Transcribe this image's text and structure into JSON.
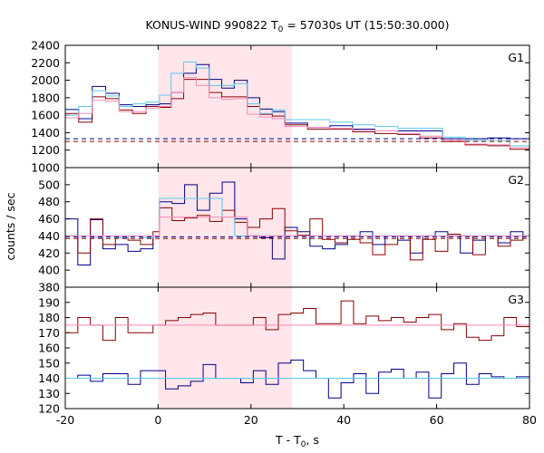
{
  "chart_data": {
    "type": "line",
    "title": "KONUS-WIND 990822 T",
    "title_sub": "0",
    "title_rest": " = 57030s UT (15:50:30.000)",
    "xlabel": "T - T",
    "xlabel_sub": "0",
    "xlabel_rest": ", s",
    "ylabel": "counts / sec",
    "xlim": [
      -20,
      80
    ],
    "xticks": [
      -20,
      0,
      20,
      40,
      60,
      80
    ],
    "shaded_interval": [
      0,
      28.8
    ],
    "shade_color": "#ffe6ea",
    "grid": false,
    "panels": [
      {
        "name": "G1",
        "ylim": [
          1000,
          2400
        ],
        "yticks": [
          1000,
          1200,
          1400,
          1600,
          1800,
          2000,
          2200,
          2400
        ],
        "bin_edges": [
          -20,
          -17.1,
          -14.2,
          -11.3,
          -8.4,
          -5.5,
          -2.6,
          0.3,
          2.8,
          5.5,
          8.2,
          11.0,
          13.7,
          16.4,
          19.2,
          21.9,
          24.6,
          27.3,
          32.2,
          37.0,
          41.9,
          46.7,
          51.6,
          56.4,
          61.3,
          66.1,
          71.0,
          75.8,
          80
        ],
        "series": [
          {
            "color": "#00008b",
            "style": "step",
            "values": [
              1665,
              1560,
              1930,
              1850,
              1720,
              1700,
              1720,
              1730,
              1860,
              2080,
              2180,
              2010,
              1910,
              2000,
              1800,
              1670,
              1640,
              1510,
              1460,
              1480,
              1440,
              1420,
              1420,
              1420,
              1330,
              1330,
              1340,
              1330
            ]
          },
          {
            "color": "#8b0000",
            "style": "step",
            "values": [
              1620,
              1520,
              1810,
              1790,
              1660,
              1620,
              1700,
              1690,
              1790,
              2010,
              2010,
              1860,
              1810,
              1810,
              1700,
              1610,
              1590,
              1490,
              1440,
              1440,
              1410,
              1390,
              1380,
              1340,
              1300,
              1260,
              1250,
              1210
            ]
          },
          {
            "color": "#5bc8ef",
            "style": "step",
            "values": [
              1600,
              1700,
              1880,
              1820,
              1700,
              1730,
              1750,
              1830,
              2080,
              2210,
              2140,
              1940,
              1940,
              1960,
              1730,
              1620,
              1660,
              1550,
              1550,
              1520,
              1490,
              1470,
              1450,
              1450,
              1350,
              1310,
              1310,
              1250
            ]
          },
          {
            "color": "#ff88b8",
            "style": "step",
            "values": [
              1570,
              1620,
              1770,
              1760,
              1640,
              1640,
              1680,
              1700,
              1860,
              2030,
              1940,
              1800,
              1780,
              1790,
              1610,
              1580,
              1560,
              1470,
              1460,
              1450,
              1430,
              1420,
              1390,
              1360,
              1310,
              1270,
              1260,
              1230
            ]
          },
          {
            "color": "#00008b",
            "style": "dashed",
            "values": [
              1330
            ]
          },
          {
            "color": "#8b0000",
            "style": "dashed",
            "values": [
              1300
            ]
          }
        ]
      },
      {
        "name": "G2",
        "ylim": [
          380,
          520
        ],
        "yticks": [
          380,
          400,
          420,
          440,
          460,
          480,
          500
        ],
        "bin_edges": [
          -20,
          -17.3,
          -14.6,
          -11.9,
          -9.2,
          -6.5,
          -3.8,
          -1.1,
          0.3,
          3.0,
          5.7,
          8.4,
          11.1,
          13.8,
          16.5,
          19.2,
          21.9,
          24.6,
          27.3,
          30.0,
          32.7,
          35.4,
          38.1,
          40.8,
          43.5,
          46.2,
          48.9,
          51.6,
          54.3,
          57.0,
          59.7,
          62.4,
          65.1,
          67.8,
          70.5,
          73.2,
          75.9,
          78.6,
          80
        ],
        "series": [
          {
            "color": "#00008b",
            "style": "step",
            "values": [
              460,
              406,
              459,
              425,
              430,
              422,
              425,
              440,
              480,
              478,
              500,
              470,
              490,
              503,
              460,
              440,
              438,
              413,
              450,
              445,
              428,
              425,
              430,
              440,
              445,
              430,
              440,
              435,
              420,
              440,
              445,
              440,
              420,
              435,
              440,
              432,
              445,
              440,
              440
            ]
          },
          {
            "color": "#8b0000",
            "style": "step",
            "values": [
              440,
              420,
              460,
              430,
              438,
              435,
              430,
              445,
              473,
              458,
              461,
              464,
              457,
              470,
              456,
              450,
              460,
              472,
              446,
              441,
              460,
              436,
              432,
              436,
              432,
              418,
              430,
              440,
              412,
              436,
              422,
              442,
              440,
              418,
              440,
              428,
              435,
              440,
              440
            ]
          },
          {
            "color": "#5bc8ef",
            "style": "step",
            "values": [
              440,
              440,
              438,
              440,
              438,
              440,
              438,
              440,
              484,
              484,
              484,
              484,
              484,
              462,
              440,
              440,
              440,
              440,
              440,
              440,
              440,
              440,
              440,
              440,
              440,
              440,
              440,
              440,
              440,
              440,
              440,
              440,
              440,
              440,
              440,
              440,
              440,
              440,
              440
            ]
          },
          {
            "color": "#ff88b8",
            "style": "step",
            "values": [
              440,
              440,
              440,
              440,
              440,
              440,
              440,
              440,
              462,
              462,
              462,
              462,
              462,
              462,
              462,
              440,
              440,
              440,
              440,
              440,
              440,
              440,
              440,
              440,
              440,
              440,
              440,
              440,
              440,
              440,
              440,
              440,
              440,
              440,
              440,
              440,
              440,
              440,
              440
            ]
          },
          {
            "color": "#00008b",
            "style": "dashed",
            "values": [
              439
            ]
          },
          {
            "color": "#8b0000",
            "style": "dashed",
            "values": [
              437
            ]
          }
        ]
      },
      {
        "name": "G3",
        "ylim": [
          120,
          200
        ],
        "yticks": [
          120,
          130,
          140,
          150,
          160,
          170,
          180,
          190
        ],
        "bin_edges": [
          -20,
          -17.3,
          -14.6,
          -11.9,
          -9.2,
          -6.5,
          -3.8,
          -1.1,
          1.6,
          4.3,
          7.0,
          9.7,
          12.4,
          15.1,
          17.8,
          20.5,
          23.2,
          25.9,
          28.6,
          31.3,
          34.0,
          36.7,
          39.4,
          42.1,
          44.8,
          47.5,
          50.2,
          52.9,
          55.6,
          58.3,
          61.0,
          63.7,
          66.4,
          69.1,
          71.8,
          74.5,
          77.2,
          80
        ],
        "series": [
          {
            "color": "#8b0000",
            "style": "step",
            "values": [
              170,
              180,
              175,
              165,
              180,
              170,
              170,
              175,
              178,
              180,
              182,
              183,
              175,
              175,
              175,
              180,
              172,
              182,
              183,
              186,
              176,
              176,
              191,
              176,
              181,
              178,
              180,
              177,
              180,
              182,
              172,
              176,
              167,
              165,
              168,
              180,
              174
            ]
          },
          {
            "color": "#00008b",
            "style": "step",
            "values": [
              140,
              142,
              138,
              143,
              143,
              136,
              145,
              145,
              133,
              135,
              138,
              149,
              140,
              140,
              137,
              145,
              136,
              150,
              152,
              145,
              140,
              127,
              137,
              143,
              130,
              144,
              146,
              140,
              144,
              127,
              143,
              150,
              136,
              143,
              141,
              140,
              141
            ]
          },
          {
            "color": "#ff88b8",
            "style": "flat",
            "values": [
              175
            ]
          },
          {
            "color": "#5bc8ef",
            "style": "flat",
            "values": [
              140
            ]
          }
        ]
      }
    ]
  }
}
